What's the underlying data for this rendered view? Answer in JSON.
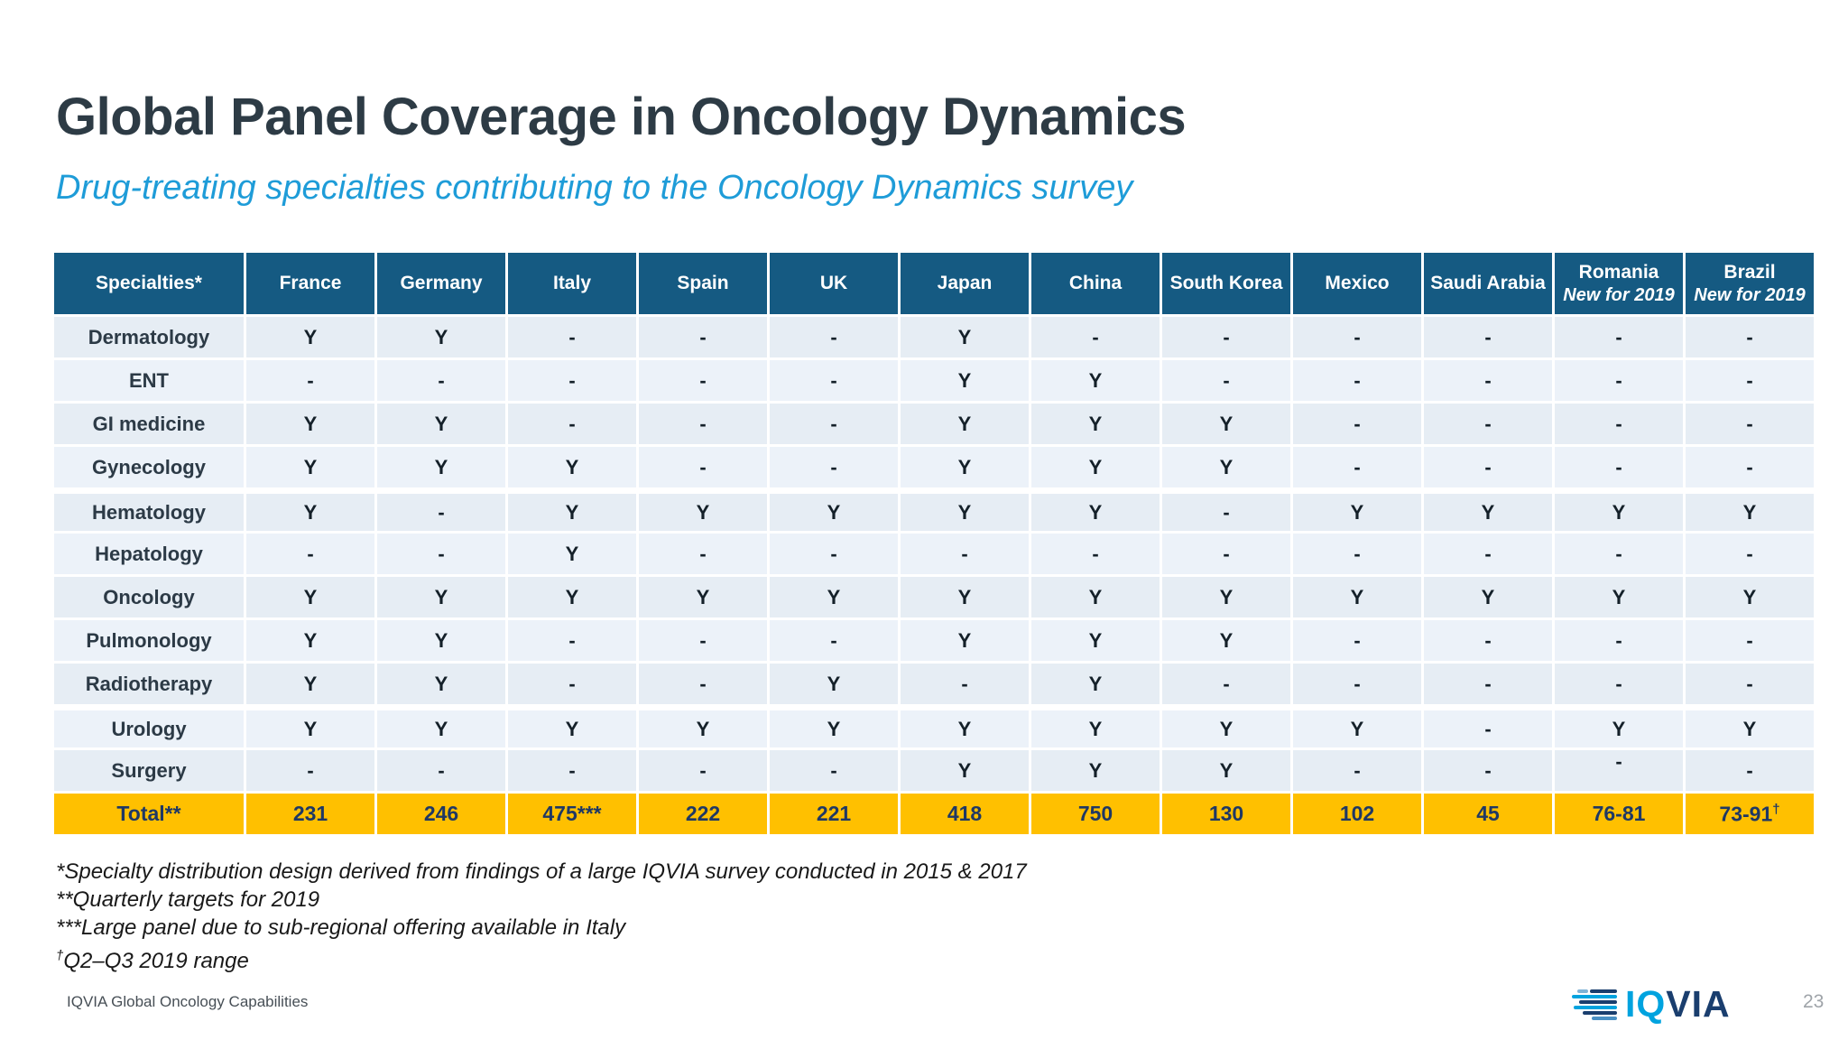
{
  "slide": {
    "title": "Global Panel Coverage in Oncology Dynamics",
    "subtitle": "Drug-treating specialties contributing to the Oncology Dynamics survey",
    "footer_left": "IQVIA Global Oncology Capabilities",
    "page_number": "23",
    "logo_text_iq": "IQ",
    "logo_text_via": "VIA"
  },
  "colors": {
    "header_bg": "#155A82",
    "header_text": "#FFFFFF",
    "row_bg_dark": "#E6EDF4",
    "row_bg_light": "#ECF2F9",
    "cell_text": "#142029",
    "total_bg": "#FFC000",
    "total_text": "#1F3864",
    "title": "#2D3B45",
    "subtitle": "#1E9CD8",
    "logo_light_blue": "#00A3DF",
    "logo_navy": "#1A3E6E"
  },
  "chart_data": {
    "type": "table",
    "title": "Global Panel Coverage in Oncology Dynamics",
    "columns": [
      {
        "label": "Specialties*"
      },
      {
        "label": "France"
      },
      {
        "label": "Germany"
      },
      {
        "label": "Italy"
      },
      {
        "label": "Spain"
      },
      {
        "label": "UK"
      },
      {
        "label": "Japan"
      },
      {
        "label": "China"
      },
      {
        "label": "South Korea"
      },
      {
        "label": "Mexico"
      },
      {
        "label": "Saudi Arabia"
      },
      {
        "label": "Romania",
        "sublabel": "New for 2019"
      },
      {
        "label": "Brazil",
        "sublabel": "New for 2019"
      }
    ],
    "rows": [
      {
        "label": "Dermatology",
        "values": [
          "Y",
          "Y",
          "-",
          "-",
          "-",
          "Y",
          "-",
          "-",
          "-",
          "-",
          "-",
          "-"
        ]
      },
      {
        "label": "ENT",
        "values": [
          "-",
          "-",
          "-",
          "-",
          "-",
          "Y",
          "Y",
          "-",
          "-",
          "-",
          "-",
          "-"
        ]
      },
      {
        "label": "GI medicine",
        "values": [
          "Y",
          "Y",
          "-",
          "-",
          "-",
          "Y",
          "Y",
          "Y",
          "-",
          "-",
          "-",
          "-"
        ]
      },
      {
        "label": "Gynecology",
        "values": [
          "Y",
          "Y",
          "Y",
          "-",
          "-",
          "Y",
          "Y",
          "Y",
          "-",
          "-",
          "-",
          "-"
        ]
      },
      {
        "label": "Hematology",
        "values": [
          "Y",
          "-",
          "Y",
          "Y",
          "Y",
          "Y",
          "Y",
          "-",
          "Y",
          "Y",
          "Y",
          "Y"
        ]
      },
      {
        "label": "Hepatology",
        "values": [
          "-",
          "-",
          "Y",
          "-",
          "-",
          "-",
          "-",
          "-",
          "-",
          "-",
          "-",
          "-"
        ]
      },
      {
        "label": "Oncology",
        "values": [
          "Y",
          "Y",
          "Y",
          "Y",
          "Y",
          "Y",
          "Y",
          "Y",
          "Y",
          "Y",
          "Y",
          "Y"
        ]
      },
      {
        "label": "Pulmonology",
        "values": [
          "Y",
          "Y",
          "-",
          "-",
          "-",
          "Y",
          "Y",
          "Y",
          "-",
          "-",
          "-",
          "-"
        ]
      },
      {
        "label": "Radiotherapy",
        "values": [
          "Y",
          "Y",
          "-",
          "-",
          "Y",
          "-",
          "Y",
          "-",
          "-",
          "-",
          "-",
          "-"
        ]
      },
      {
        "label": "Urology",
        "values": [
          "Y",
          "Y",
          "Y",
          "Y",
          "Y",
          "Y",
          "Y",
          "Y",
          "Y",
          "-",
          "Y",
          "Y"
        ]
      },
      {
        "label": "Surgery",
        "values": [
          "-",
          "-",
          "-",
          "-",
          "-",
          "Y",
          "Y",
          "Y",
          "-",
          "-",
          "-",
          "-"
        ]
      }
    ],
    "total_row": {
      "label": "Total**",
      "values": [
        {
          "text": "231"
        },
        {
          "text": "246"
        },
        {
          "text": "475***"
        },
        {
          "text": "222"
        },
        {
          "text": "221"
        },
        {
          "text": "418"
        },
        {
          "text": "750"
        },
        {
          "text": "130"
        },
        {
          "text": "102"
        },
        {
          "text": "45"
        },
        {
          "text": "76-81"
        },
        {
          "text": "73-91",
          "sup": "†"
        }
      ]
    },
    "row_gaps_before": [
      4,
      9
    ],
    "raised_dash_cells": [
      [
        10,
        10
      ]
    ]
  },
  "footnotes": [
    {
      "sup": "",
      "text": "*Specialty distribution design derived from findings of a large IQVIA survey conducted in 2015 & 2017"
    },
    {
      "sup": "",
      "text": "**Quarterly targets for 2019"
    },
    {
      "sup": "",
      "text": "***Large panel due to sub-regional offering available in Italy"
    },
    {
      "sup": "†",
      "text": "Q2–Q3 2019 range"
    }
  ]
}
